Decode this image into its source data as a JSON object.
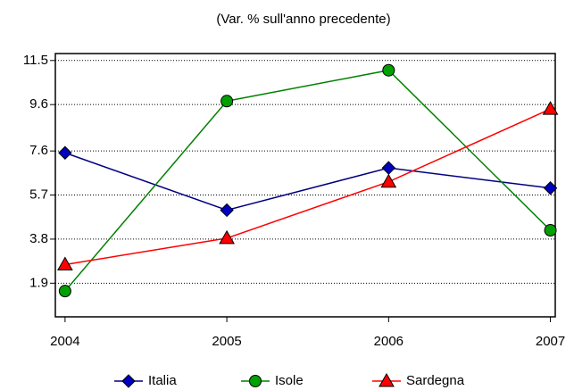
{
  "chart_data": {
    "type": "line",
    "title": "(Var. % sull'anno precedente)",
    "x": [
      2004,
      2005,
      2006,
      2007
    ],
    "xlim": [
      2003.94,
      2007.03
    ],
    "xticks": [
      2004,
      2005,
      2006,
      2007
    ],
    "ylim": [
      0.45,
      11.8
    ],
    "yticks": [
      1.9,
      3.8,
      5.7,
      7.6,
      9.6,
      11.5
    ],
    "grid": true,
    "legend": "bottom",
    "series": [
      {
        "name": "Italia",
        "color": "#000080",
        "fill": "#0000c0",
        "marker": "diamond",
        "values": [
          7.52,
          5.05,
          6.87,
          6.0
        ]
      },
      {
        "name": "Isole",
        "color": "#008000",
        "fill": "#00a000",
        "marker": "circle",
        "values": [
          1.56,
          9.75,
          11.08,
          4.18
        ]
      },
      {
        "name": "Sardegna",
        "color": "#ff0000",
        "fill": "#ff0000",
        "marker": "triangle",
        "values": [
          2.7,
          3.84,
          6.27,
          9.41
        ]
      }
    ]
  }
}
